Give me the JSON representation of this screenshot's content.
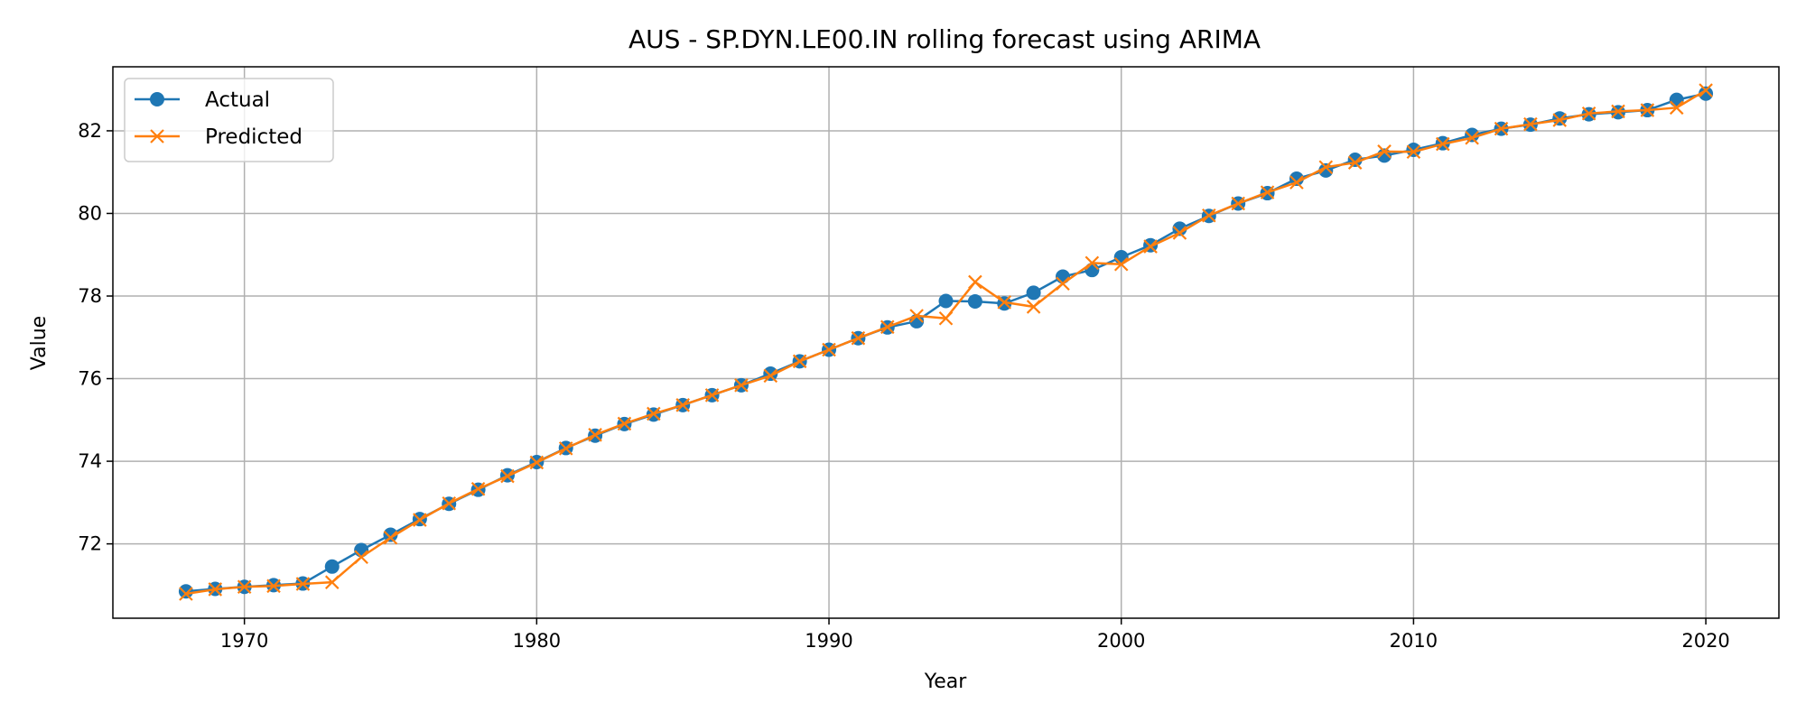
{
  "chart_data": {
    "type": "line",
    "title": "AUS - SP.DYN.LE00.IN rolling forecast using ARIMA",
    "xlabel": "Year",
    "ylabel": "Value",
    "xlim": [
      1965.5,
      2022.5
    ],
    "ylim": [
      70.2,
      83.55
    ],
    "x_ticks": [
      1970,
      1980,
      1990,
      2000,
      2010,
      2020
    ],
    "y_ticks": [
      72,
      74,
      76,
      78,
      80,
      82
    ],
    "grid": true,
    "legend_position": "top-left",
    "x": [
      1968,
      1969,
      1970,
      1971,
      1972,
      1973,
      1974,
      1975,
      1976,
      1977,
      1978,
      1979,
      1980,
      1981,
      1982,
      1983,
      1984,
      1985,
      1986,
      1987,
      1988,
      1989,
      1990,
      1991,
      1992,
      1993,
      1994,
      1995,
      1996,
      1997,
      1998,
      1999,
      2000,
      2001,
      2002,
      2003,
      2004,
      2005,
      2006,
      2007,
      2008,
      2009,
      2010,
      2011,
      2012,
      2013,
      2014,
      2015,
      2016,
      2017,
      2018,
      2019,
      2020
    ],
    "series": [
      {
        "name": "Actual",
        "color": "#1f77b4",
        "marker": "circle",
        "values": [
          70.85,
          70.91,
          70.96,
          71.0,
          71.04,
          71.45,
          71.85,
          72.22,
          72.6,
          72.97,
          73.31,
          73.66,
          73.98,
          74.32,
          74.62,
          74.9,
          75.13,
          75.36,
          75.6,
          75.84,
          76.12,
          76.42,
          76.7,
          76.98,
          77.24,
          77.39,
          77.88,
          77.87,
          77.82,
          78.08,
          78.47,
          78.63,
          78.94,
          79.23,
          79.63,
          79.94,
          80.24,
          80.49,
          80.84,
          81.04,
          81.3,
          81.4,
          81.54,
          81.7,
          81.9,
          82.05,
          82.15,
          82.3,
          82.4,
          82.45,
          82.5,
          82.75,
          82.9
        ],
        "label_name": "Actual"
      },
      {
        "name": "Predicted",
        "color": "#ff7f0e",
        "marker": "x",
        "values": [
          70.79,
          70.9,
          70.96,
          70.98,
          71.03,
          71.07,
          71.68,
          72.15,
          72.58,
          72.98,
          73.33,
          73.64,
          73.97,
          74.31,
          74.64,
          74.91,
          75.15,
          75.36,
          75.6,
          75.84,
          76.07,
          76.42,
          76.7,
          76.98,
          77.25,
          77.52,
          77.46,
          78.34,
          77.85,
          77.74,
          78.3,
          78.8,
          78.77,
          79.2,
          79.53,
          79.95,
          80.24,
          80.51,
          80.75,
          81.12,
          81.23,
          81.5,
          81.49,
          81.68,
          81.83,
          82.05,
          82.16,
          82.26,
          82.42,
          82.47,
          82.5,
          82.56,
          82.98
        ]
      }
    ]
  }
}
